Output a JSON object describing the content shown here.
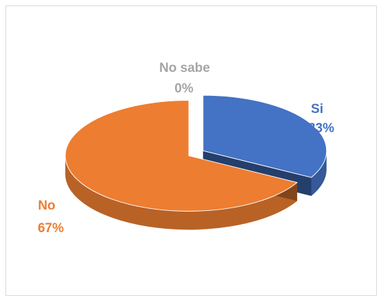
{
  "chart_data": {
    "type": "pie",
    "style": "3d-exploded",
    "title": "",
    "legend": "none",
    "slices": [
      {
        "label": "Si",
        "value": 33,
        "value_label": "33%",
        "color": "#4472C4"
      },
      {
        "label": "No",
        "value": 67,
        "value_label": "67%",
        "color": "#ED7D31"
      },
      {
        "label": "No sabe",
        "value": 0,
        "value_label": "0%",
        "color": "#A5A5A5"
      }
    ]
  }
}
